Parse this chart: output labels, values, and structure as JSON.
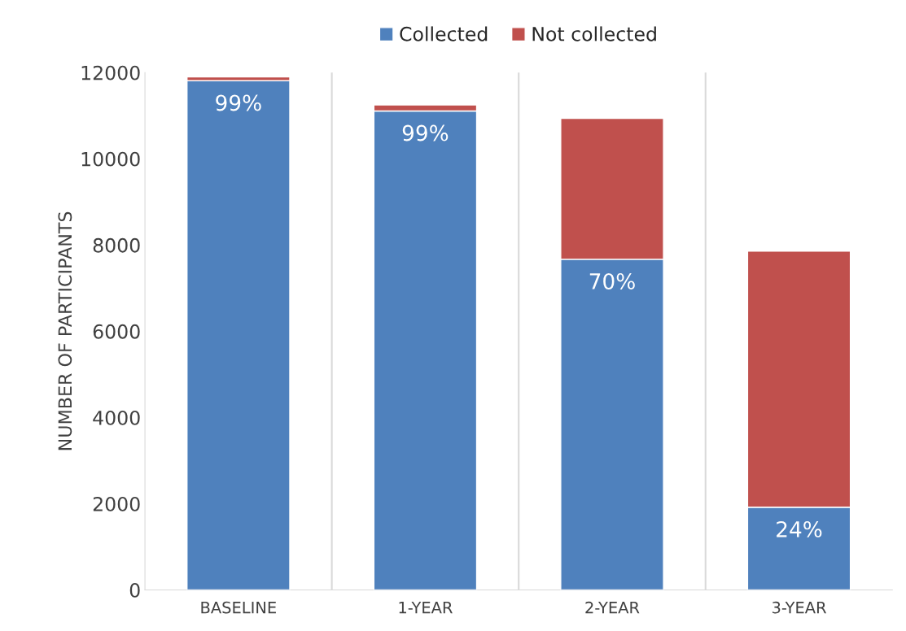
{
  "chart_data": {
    "type": "bar",
    "stacked": true,
    "ylabel": "NUMBER OF PARTICIPANTS",
    "categories": [
      "BASELINE",
      "1-YEAR",
      "2-YEAR",
      "3-YEAR"
    ],
    "series": [
      {
        "name": "Collected",
        "color": "#4f81bd",
        "values": [
          11810,
          11110,
          7670,
          1920
        ]
      },
      {
        "name": "Not collected",
        "color": "#c0504d",
        "values": [
          90,
          140,
          3270,
          5940
        ]
      }
    ],
    "annotations": [
      {
        "text": "99%",
        "x": "BASELINE",
        "y": 11810
      },
      {
        "text": "99%",
        "x": "1-YEAR",
        "y": 11110
      },
      {
        "text": "70%",
        "x": "2-YEAR",
        "y": 7670
      },
      {
        "text": "24%",
        "x": "3-YEAR",
        "y": 1920
      }
    ],
    "ylim": [
      0,
      12000
    ],
    "yticks": [
      0,
      2000,
      4000,
      6000,
      8000,
      10000,
      12000
    ],
    "grid": "x",
    "legend": "top"
  }
}
